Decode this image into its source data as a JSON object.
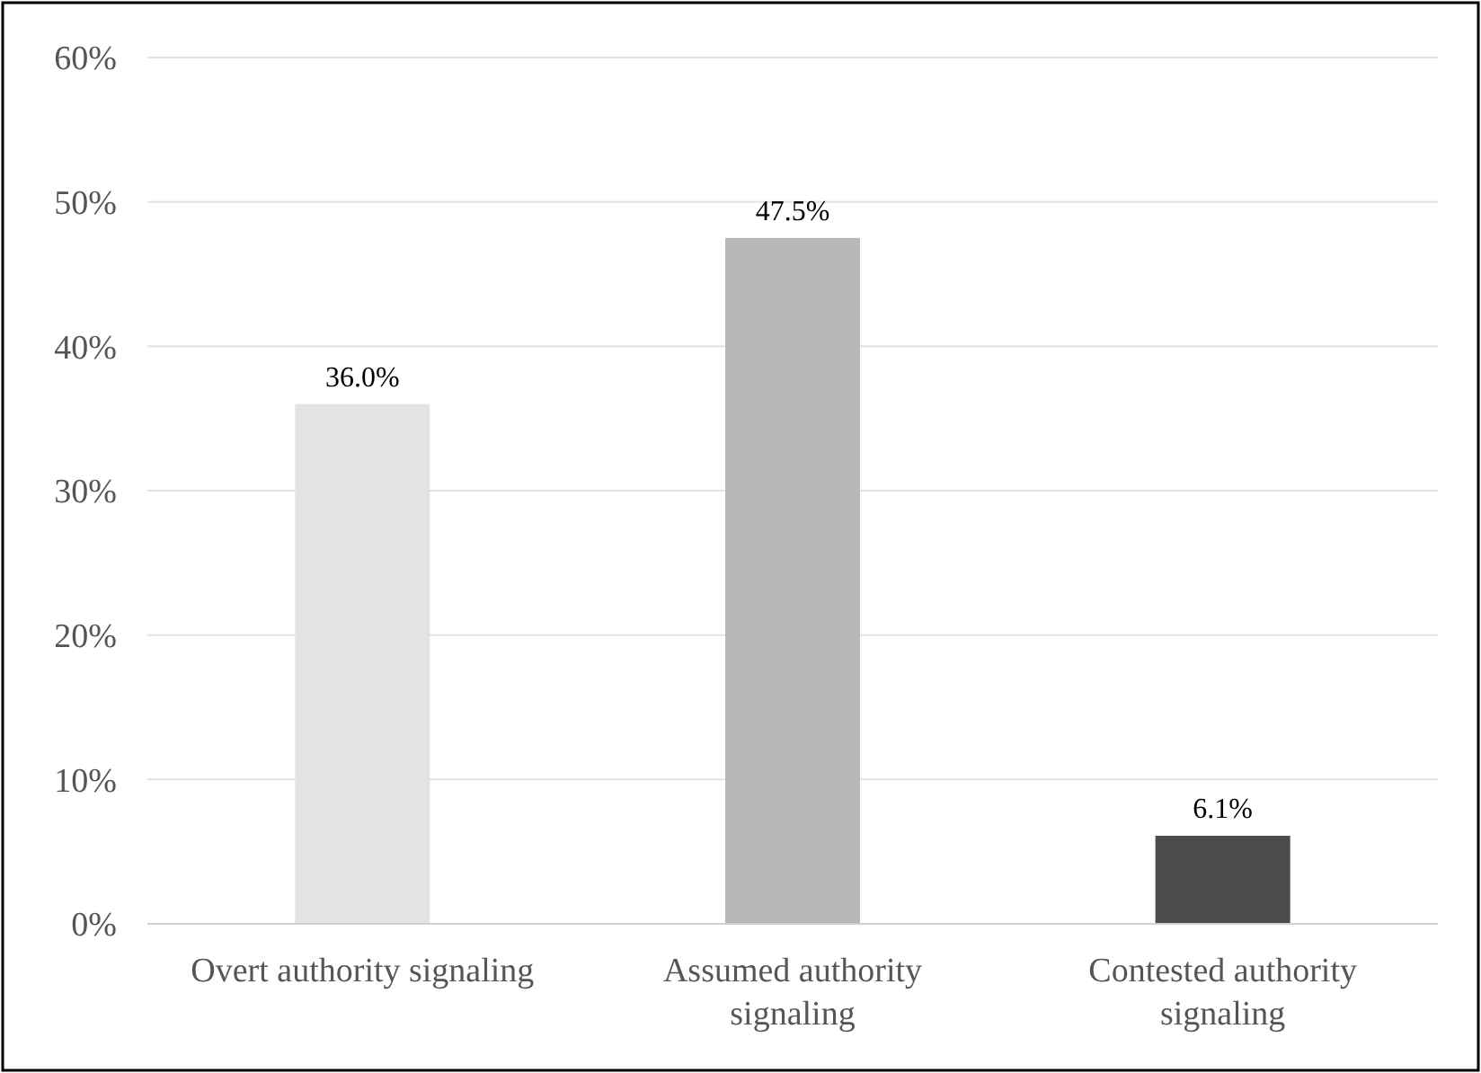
{
  "chart_data": {
    "type": "bar",
    "categories": [
      "Overt authority signaling",
      "Assumed authority signaling",
      "Contested authority signaling"
    ],
    "values": [
      36.0,
      47.5,
      6.1
    ],
    "colors": [
      "#e2e3e5",
      "#b7b8ba",
      "#4a4b4d"
    ],
    "value_labels": [
      "36.0%",
      "47.5%",
      "6.1%"
    ],
    "ylim": [
      0,
      60
    ],
    "yticks": [
      {
        "value": 0,
        "label": "0%"
      },
      {
        "value": 10,
        "label": "10%"
      },
      {
        "value": 20,
        "label": "20%"
      },
      {
        "value": 30,
        "label": "30%"
      },
      {
        "value": 40,
        "label": "40%"
      },
      {
        "value": 50,
        "label": "50%"
      },
      {
        "value": 60,
        "label": "60%"
      }
    ],
    "grid": true
  }
}
